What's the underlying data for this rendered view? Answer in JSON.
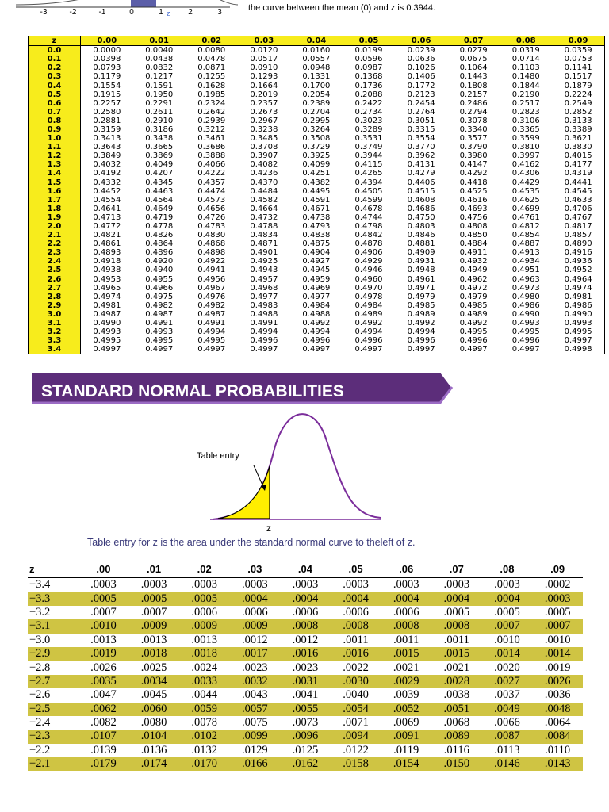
{
  "top": {
    "axis_labels": [
      "-3",
      "-2",
      "-1",
      "0",
      "1",
      "2",
      "3"
    ],
    "z_label": "z",
    "note": "the curve between the mean (0) and z is 0.3944."
  },
  "table1": {
    "header": [
      "z",
      "0.00",
      "0.01",
      "0.02",
      "0.03",
      "0.04",
      "0.05",
      "0.06",
      "0.07",
      "0.08",
      "0.09"
    ],
    "rows": [
      [
        "0.0",
        "0.0000",
        "0.0040",
        "0.0080",
        "0.0120",
        "0.0160",
        "0.0199",
        "0.0239",
        "0.0279",
        "0.0319",
        "0.0359"
      ],
      [
        "0.1",
        "0.0398",
        "0.0438",
        "0.0478",
        "0.0517",
        "0.0557",
        "0.0596",
        "0.0636",
        "0.0675",
        "0.0714",
        "0.0753"
      ],
      [
        "0.2",
        "0.0793",
        "0.0832",
        "0.0871",
        "0.0910",
        "0.0948",
        "0.0987",
        "0.1026",
        "0.1064",
        "0.1103",
        "0.1141"
      ],
      [
        "0.3",
        "0.1179",
        "0.1217",
        "0.1255",
        "0.1293",
        "0.1331",
        "0.1368",
        "0.1406",
        "0.1443",
        "0.1480",
        "0.1517"
      ],
      [
        "0.4",
        "0.1554",
        "0.1591",
        "0.1628",
        "0.1664",
        "0.1700",
        "0.1736",
        "0.1772",
        "0.1808",
        "0.1844",
        "0.1879"
      ],
      [
        "0.5",
        "0.1915",
        "0.1950",
        "0.1985",
        "0.2019",
        "0.2054",
        "0.2088",
        "0.2123",
        "0.2157",
        "0.2190",
        "0.2224"
      ],
      [
        "0.6",
        "0.2257",
        "0.2291",
        "0.2324",
        "0.2357",
        "0.2389",
        "0.2422",
        "0.2454",
        "0.2486",
        "0.2517",
        "0.2549"
      ],
      [
        "0.7",
        "0.2580",
        "0.2611",
        "0.2642",
        "0.2673",
        "0.2704",
        "0.2734",
        "0.2764",
        "0.2794",
        "0.2823",
        "0.2852"
      ],
      [
        "0.8",
        "0.2881",
        "0.2910",
        "0.2939",
        "0.2967",
        "0.2995",
        "0.3023",
        "0.3051",
        "0.3078",
        "0.3106",
        "0.3133"
      ],
      [
        "0.9",
        "0.3159",
        "0.3186",
        "0.3212",
        "0.3238",
        "0.3264",
        "0.3289",
        "0.3315",
        "0.3340",
        "0.3365",
        "0.3389"
      ],
      [
        "1.0",
        "0.3413",
        "0.3438",
        "0.3461",
        "0.3485",
        "0.3508",
        "0.3531",
        "0.3554",
        "0.3577",
        "0.3599",
        "0.3621"
      ],
      [
        "1.1",
        "0.3643",
        "0.3665",
        "0.3686",
        "0.3708",
        "0.3729",
        "0.3749",
        "0.3770",
        "0.3790",
        "0.3810",
        "0.3830"
      ],
      [
        "1.2",
        "0.3849",
        "0.3869",
        "0.3888",
        "0.3907",
        "0.3925",
        "0.3944",
        "0.3962",
        "0.3980",
        "0.3997",
        "0.4015"
      ],
      [
        "1.3",
        "0.4032",
        "0.4049",
        "0.4066",
        "0.4082",
        "0.4099",
        "0.4115",
        "0.4131",
        "0.4147",
        "0.4162",
        "0.4177"
      ],
      [
        "1.4",
        "0.4192",
        "0.4207",
        "0.4222",
        "0.4236",
        "0.4251",
        "0.4265",
        "0.4279",
        "0.4292",
        "0.4306",
        "0.4319"
      ],
      [
        "1.5",
        "0.4332",
        "0.4345",
        "0.4357",
        "0.4370",
        "0.4382",
        "0.4394",
        "0.4406",
        "0.4418",
        "0.4429",
        "0.4441"
      ],
      [
        "1.6",
        "0.4452",
        "0.4463",
        "0.4474",
        "0.4484",
        "0.4495",
        "0.4505",
        "0.4515",
        "0.4525",
        "0.4535",
        "0.4545"
      ],
      [
        "1.7",
        "0.4554",
        "0.4564",
        "0.4573",
        "0.4582",
        "0.4591",
        "0.4599",
        "0.4608",
        "0.4616",
        "0.4625",
        "0.4633"
      ],
      [
        "1.8",
        "0.4641",
        "0.4649",
        "0.4656",
        "0.4664",
        "0.4671",
        "0.4678",
        "0.4686",
        "0.4693",
        "0.4699",
        "0.4706"
      ],
      [
        "1.9",
        "0.4713",
        "0.4719",
        "0.4726",
        "0.4732",
        "0.4738",
        "0.4744",
        "0.4750",
        "0.4756",
        "0.4761",
        "0.4767"
      ],
      [
        "2.0",
        "0.4772",
        "0.4778",
        "0.4783",
        "0.4788",
        "0.4793",
        "0.4798",
        "0.4803",
        "0.4808",
        "0.4812",
        "0.4817"
      ],
      [
        "2.1",
        "0.4821",
        "0.4826",
        "0.4830",
        "0.4834",
        "0.4838",
        "0.4842",
        "0.4846",
        "0.4850",
        "0.4854",
        "0.4857"
      ],
      [
        "2.2",
        "0.4861",
        "0.4864",
        "0.4868",
        "0.4871",
        "0.4875",
        "0.4878",
        "0.4881",
        "0.4884",
        "0.4887",
        "0.4890"
      ],
      [
        "2.3",
        "0.4893",
        "0.4896",
        "0.4898",
        "0.4901",
        "0.4904",
        "0.4906",
        "0.4909",
        "0.4911",
        "0.4913",
        "0.4916"
      ],
      [
        "2.4",
        "0.4918",
        "0.4920",
        "0.4922",
        "0.4925",
        "0.4927",
        "0.4929",
        "0.4931",
        "0.4932",
        "0.4934",
        "0.4936"
      ],
      [
        "2.5",
        "0.4938",
        "0.4940",
        "0.4941",
        "0.4943",
        "0.4945",
        "0.4946",
        "0.4948",
        "0.4949",
        "0.4951",
        "0.4952"
      ],
      [
        "2.6",
        "0.4953",
        "0.4955",
        "0.4956",
        "0.4957",
        "0.4959",
        "0.4960",
        "0.4961",
        "0.4962",
        "0.4963",
        "0.4964"
      ],
      [
        "2.7",
        "0.4965",
        "0.4966",
        "0.4967",
        "0.4968",
        "0.4969",
        "0.4970",
        "0.4971",
        "0.4972",
        "0.4973",
        "0.4974"
      ],
      [
        "2.8",
        "0.4974",
        "0.4975",
        "0.4976",
        "0.4977",
        "0.4977",
        "0.4978",
        "0.4979",
        "0.4979",
        "0.4980",
        "0.4981"
      ],
      [
        "2.9",
        "0.4981",
        "0.4982",
        "0.4982",
        "0.4983",
        "0.4984",
        "0.4984",
        "0.4985",
        "0.4985",
        "0.4986",
        "0.4986"
      ],
      [
        "3.0",
        "0.4987",
        "0.4987",
        "0.4987",
        "0.4988",
        "0.4988",
        "0.4989",
        "0.4989",
        "0.4989",
        "0.4990",
        "0.4990"
      ],
      [
        "3.1",
        "0.4990",
        "0.4991",
        "0.4991",
        "0.4991",
        "0.4992",
        "0.4992",
        "0.4992",
        "0.4992",
        "0.4993",
        "0.4993"
      ],
      [
        "3.2",
        "0.4993",
        "0.4993",
        "0.4994",
        "0.4994",
        "0.4994",
        "0.4994",
        "0.4994",
        "0.4995",
        "0.4995",
        "0.4995"
      ],
      [
        "3.3",
        "0.4995",
        "0.4995",
        "0.4995",
        "0.4996",
        "0.4996",
        "0.4996",
        "0.4996",
        "0.4996",
        "0.4996",
        "0.4997"
      ],
      [
        "3.4",
        "0.4997",
        "0.4997",
        "0.4997",
        "0.4997",
        "0.4997",
        "0.4997",
        "0.4997",
        "0.4997",
        "0.4997",
        "0.4998"
      ]
    ]
  },
  "banner": {
    "title": "STANDARD NORMAL PROBABILITIES"
  },
  "diagram": {
    "entry_label": "Table entry",
    "z_label": "z",
    "caption": "Table entry for z is the area under the standard normal curve to theleft of z."
  },
  "table2": {
    "header": [
      "z",
      ".00",
      ".01",
      ".02",
      ".03",
      ".04",
      ".05",
      ".06",
      ".07",
      ".08",
      ".09"
    ],
    "rows": [
      [
        "−3.4",
        ".0003",
        ".0003",
        ".0003",
        ".0003",
        ".0003",
        ".0003",
        ".0003",
        ".0003",
        ".0003",
        ".0002"
      ],
      [
        "−3.3",
        ".0005",
        ".0005",
        ".0005",
        ".0004",
        ".0004",
        ".0004",
        ".0004",
        ".0004",
        ".0004",
        ".0003"
      ],
      [
        "−3.2",
        ".0007",
        ".0007",
        ".0006",
        ".0006",
        ".0006",
        ".0006",
        ".0006",
        ".0005",
        ".0005",
        ".0005"
      ],
      [
        "−3.1",
        ".0010",
        ".0009",
        ".0009",
        ".0009",
        ".0008",
        ".0008",
        ".0008",
        ".0008",
        ".0007",
        ".0007"
      ],
      [
        "−3.0",
        ".0013",
        ".0013",
        ".0013",
        ".0012",
        ".0012",
        ".0011",
        ".0011",
        ".0011",
        ".0010",
        ".0010"
      ],
      [
        "−2.9",
        ".0019",
        ".0018",
        ".0018",
        ".0017",
        ".0016",
        ".0016",
        ".0015",
        ".0015",
        ".0014",
        ".0014"
      ],
      [
        "−2.8",
        ".0026",
        ".0025",
        ".0024",
        ".0023",
        ".0023",
        ".0022",
        ".0021",
        ".0021",
        ".0020",
        ".0019"
      ],
      [
        "−2.7",
        ".0035",
        ".0034",
        ".0033",
        ".0032",
        ".0031",
        ".0030",
        ".0029",
        ".0028",
        ".0027",
        ".0026"
      ],
      [
        "−2.6",
        ".0047",
        ".0045",
        ".0044",
        ".0043",
        ".0041",
        ".0040",
        ".0039",
        ".0038",
        ".0037",
        ".0036"
      ],
      [
        "−2.5",
        ".0062",
        ".0060",
        ".0059",
        ".0057",
        ".0055",
        ".0054",
        ".0052",
        ".0051",
        ".0049",
        ".0048"
      ],
      [
        "−2.4",
        ".0082",
        ".0080",
        ".0078",
        ".0075",
        ".0073",
        ".0071",
        ".0069",
        ".0068",
        ".0066",
        ".0064"
      ],
      [
        "−2.3",
        ".0107",
        ".0104",
        ".0102",
        ".0099",
        ".0096",
        ".0094",
        ".0091",
        ".0089",
        ".0087",
        ".0084"
      ],
      [
        "−2.2",
        ".0139",
        ".0136",
        ".0132",
        ".0129",
        ".0125",
        ".0122",
        ".0119",
        ".0116",
        ".0113",
        ".0110"
      ],
      [
        "−2.1",
        ".0179",
        ".0174",
        ".0170",
        ".0166",
        ".0162",
        ".0158",
        ".0154",
        ".0150",
        ".0146",
        ".0143"
      ]
    ]
  }
}
